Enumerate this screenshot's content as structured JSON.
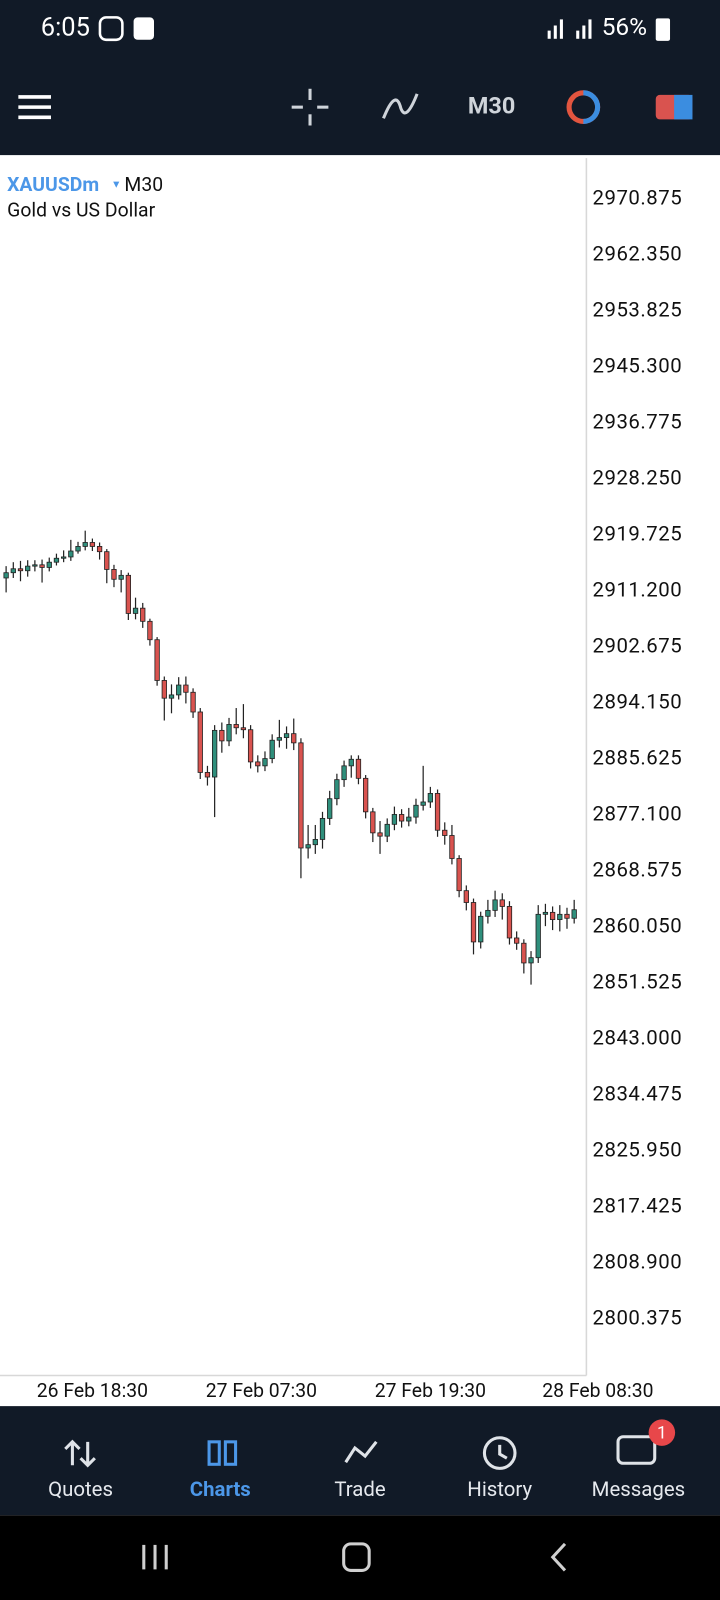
{
  "status_bar": {
    "time": "6:05",
    "battery": "56%"
  },
  "toolbar": {
    "timeframe": "M30"
  },
  "chart_data": {
    "type": "candlestick",
    "symbol": "XAUUSDm",
    "timeframe": "M30",
    "subtitle": "Gold vs US Dollar",
    "up_color": "#2f8f7c",
    "down_color": "#d9534f",
    "grid": false,
    "open": [
      2913.2,
      2914.0,
      2914.6,
      2914.3,
      2915.0,
      2915.2,
      2914.8,
      2915.6,
      2916.2,
      2916.4,
      2917.3,
      2918.0,
      2918.6,
      2918.0,
      2917.2,
      2914.5,
      2913.0,
      2913.6,
      2907.8,
      2908.6,
      2906.6,
      2903.8,
      2897.6,
      2894.9,
      2895.4,
      2896.9,
      2895.8,
      2892.8,
      2883.6,
      2882.9,
      2890.0,
      2888.4,
      2890.9,
      2890.4,
      2890.1,
      2885.2,
      2884.6,
      2885.7,
      2888.5,
      2888.9,
      2889.5,
      2888.1,
      2872.1,
      2872.6,
      2873.4,
      2876.6,
      2879.6,
      2882.5,
      2884.6,
      2885.6,
      2882.7,
      2877.6,
      2874.4,
      2873.9,
      2875.7,
      2877.2,
      2876.2,
      2876.8,
      2878.6,
      2879.1,
      2880.4,
      2874.8,
      2874.0,
      2870.5,
      2865.6,
      2863.8,
      2857.8,
      2861.7,
      2862.6,
      2864.2,
      2863.2,
      2858.4,
      2857.6,
      2854.6,
      2855.4,
      2862.0,
      2862.3,
      2861.2,
      2862.0,
      2861.4
    ],
    "high": [
      2915.0,
      2915.6,
      2915.8,
      2915.9,
      2915.9,
      2916.0,
      2916.3,
      2916.9,
      2917.4,
      2919.0,
      2918.7,
      2920.4,
      2919.2,
      2918.6,
      2917.6,
      2915.2,
      2914.4,
      2914.0,
      2910.2,
      2909.4,
      2907.0,
      2904.2,
      2898.2,
      2897.0,
      2898.1,
      2898.2,
      2896.4,
      2893.4,
      2884.6,
      2890.8,
      2891.2,
      2891.9,
      2893.4,
      2894.0,
      2890.8,
      2886.2,
      2886.8,
      2889.4,
      2891.6,
      2890.6,
      2891.8,
      2888.8,
      2875.6,
      2875.6,
      2877.6,
      2880.8,
      2883.4,
      2885.4,
      2886.2,
      2886.2,
      2883.2,
      2878.2,
      2876.2,
      2876.6,
      2878.4,
      2878.0,
      2878.2,
      2879.6,
      2884.6,
      2881.4,
      2881.0,
      2876.0,
      2875.6,
      2871.0,
      2866.4,
      2864.4,
      2862.4,
      2864.2,
      2865.6,
      2865.2,
      2864.0,
      2859.4,
      2858.2,
      2856.4,
      2863.4,
      2863.6,
      2863.2,
      2863.4,
      2863.0,
      2864.2
    ],
    "low": [
      2911.0,
      2913.2,
      2912.7,
      2913.4,
      2914.2,
      2912.5,
      2914.2,
      2915.1,
      2915.6,
      2915.8,
      2916.9,
      2917.4,
      2917.3,
      2916.0,
      2912.4,
      2911.8,
      2911.0,
      2906.8,
      2906.9,
      2905.6,
      2902.9,
      2896.8,
      2891.5,
      2892.6,
      2894.7,
      2894.1,
      2891.9,
      2882.6,
      2881.6,
      2876.8,
      2886.6,
      2887.6,
      2889.4,
      2888.8,
      2884.2,
      2883.6,
      2883.8,
      2885.0,
      2887.4,
      2887.2,
      2887.0,
      2867.5,
      2870.5,
      2871.2,
      2872.0,
      2875.6,
      2878.6,
      2881.4,
      2882.8,
      2881.8,
      2876.6,
      2873.0,
      2871.2,
      2873.0,
      2874.8,
      2875.2,
      2875.4,
      2875.8,
      2877.8,
      2878.2,
      2873.8,
      2872.6,
      2869.6,
      2864.6,
      2862.6,
      2855.9,
      2856.8,
      2860.6,
      2861.6,
      2861.2,
      2857.4,
      2856.6,
      2853.0,
      2851.3,
      2854.6,
      2860.2,
      2859.6,
      2859.4,
      2859.8,
      2860.6
    ],
    "close": [
      2914.0,
      2914.6,
      2914.3,
      2915.0,
      2915.2,
      2914.8,
      2915.6,
      2916.2,
      2916.4,
      2917.3,
      2918.0,
      2918.6,
      2918.0,
      2917.2,
      2914.5,
      2913.0,
      2913.6,
      2907.8,
      2908.6,
      2906.6,
      2903.8,
      2897.6,
      2894.9,
      2895.4,
      2896.9,
      2895.8,
      2892.8,
      2883.6,
      2882.9,
      2890.0,
      2888.4,
      2890.9,
      2890.4,
      2890.1,
      2885.2,
      2884.6,
      2885.7,
      2888.5,
      2888.9,
      2889.5,
      2888.1,
      2872.1,
      2872.6,
      2873.4,
      2876.6,
      2879.6,
      2882.5,
      2884.6,
      2885.6,
      2882.7,
      2877.6,
      2874.4,
      2873.9,
      2875.7,
      2877.2,
      2876.2,
      2876.8,
      2878.6,
      2879.1,
      2880.4,
      2874.8,
      2874.0,
      2870.5,
      2865.6,
      2863.8,
      2857.8,
      2861.7,
      2862.6,
      2864.2,
      2863.2,
      2858.4,
      2857.6,
      2854.6,
      2855.4,
      2862.0,
      2862.3,
      2861.2,
      2862.0,
      2861.4,
      2862.7
    ],
    "ylim": [
      2791.8,
      2977.1
    ],
    "yticks": [
      2970.875,
      {
        "value": 2962.35,
        "label": "2962.350"
      },
      2953.825,
      {
        "value": 2945.3,
        "label": "2945.300"
      },
      2936.775,
      {
        "value": 2928.25,
        "label": "2928.250"
      },
      2919.725,
      {
        "value": 2911.2,
        "label": "2911.200"
      },
      2902.675,
      {
        "value": 2894.15,
        "label": "2894.150"
      },
      2885.625,
      {
        "value": 2877.1,
        "label": "2877.100"
      },
      2868.575,
      {
        "value": 2860.05,
        "label": "2860.050"
      },
      2851.525,
      {
        "value": 2843,
        "label": "2843.000"
      },
      2834.475,
      {
        "value": 2825.95,
        "label": "2825.950"
      },
      2817.425,
      {
        "value": 2808.9,
        "label": "2808.900"
      },
      2800.375
    ],
    "xlim": [
      -0.85,
      80.7
    ],
    "xticks": [
      {
        "value": 12,
        "label": "26 Feb 18:30"
      },
      {
        "value": 35.5,
        "label": "27 Feb 07:30"
      },
      {
        "value": 59,
        "label": "27 Feb 19:30"
      },
      {
        "value": 82.3,
        "label": "28 Feb 08:30"
      }
    ]
  },
  "nav": {
    "items": [
      "Quotes",
      "Charts",
      "Trade",
      "History",
      "Messages"
    ],
    "active": 1,
    "badge": 1
  }
}
